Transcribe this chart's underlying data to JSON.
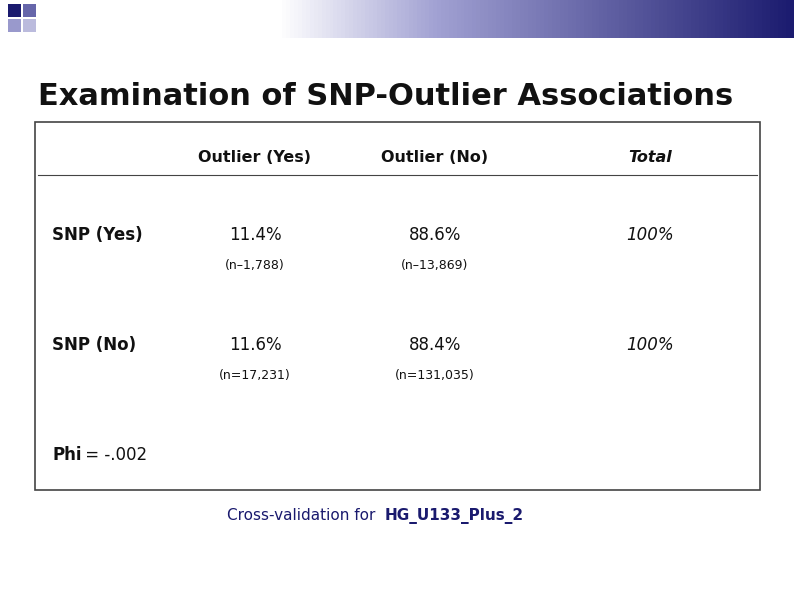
{
  "title": "Examination of SNP-Outlier Associations",
  "subtitle_plain": "Cross-validation for ",
  "subtitle_bold": "HG_U133_Plus_2",
  "background_color": "#ffffff",
  "header_row": [
    "",
    "Outlier (Yes)",
    "Outlier (No)",
    "Total"
  ],
  "row1_label": "SNP (Yes)",
  "row1_pct1": "11.4%",
  "row1_n1": "(n–1,788)",
  "row1_pct2": "88.6%",
  "row1_n2": "(n–13,869)",
  "row1_total": "100%",
  "row2_label": "SNP (No)",
  "row2_pct1": "11.6%",
  "row2_n1": "(n=17,231)",
  "row2_pct2": "88.4%",
  "row2_n2": "(n=131,035)",
  "row2_total": "100%",
  "phi_bold": "Phi",
  "phi_normal": " = -.002",
  "title_fontsize": 22,
  "header_fontsize": 11.5,
  "label_fontsize": 12,
  "data_fontsize": 12,
  "small_fontsize": 9,
  "phi_fontsize": 12,
  "subtitle_fontsize": 11,
  "table_border_color": "#444444",
  "text_color": "#111111",
  "subtitle_color": "#1a1a6e",
  "corner_sq1": "#1a1a6e",
  "corner_sq2": "#4a4a9e",
  "banner_left_color": "#ffffff",
  "banner_right_color": "#1a1a6e"
}
